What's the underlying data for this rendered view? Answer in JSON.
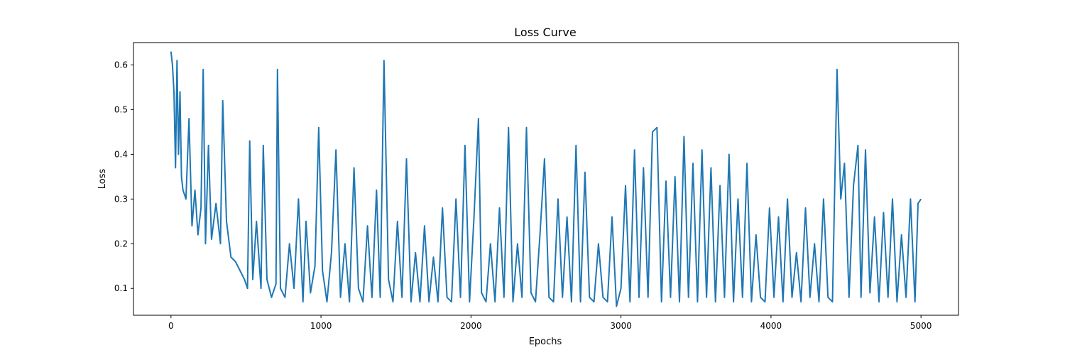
{
  "chart_data": {
    "type": "line",
    "title": "Loss Curve",
    "xlabel": "Epochs",
    "ylabel": "Loss",
    "xlim": [
      -250,
      5250
    ],
    "ylim": [
      0.04,
      0.65
    ],
    "xticks": [
      0,
      1000,
      2000,
      3000,
      4000,
      5000
    ],
    "xtick_labels": [
      "0",
      "1000",
      "2000",
      "3000",
      "4000",
      "5000"
    ],
    "yticks": [
      0.1,
      0.2,
      0.3,
      0.4,
      0.5,
      0.6
    ],
    "ytick_labels": [
      "0.1",
      "0.2",
      "0.3",
      "0.4",
      "0.5",
      "0.6"
    ],
    "grid": false,
    "series": [
      {
        "color": "#1f77b4",
        "x": [
          0,
          10,
          20,
          30,
          40,
          50,
          60,
          70,
          80,
          100,
          120,
          140,
          160,
          180,
          200,
          215,
          230,
          250,
          270,
          300,
          330,
          345,
          370,
          400,
          430,
          460,
          490,
          510,
          525,
          545,
          570,
          600,
          615,
          640,
          670,
          700,
          710,
          730,
          760,
          790,
          820,
          850,
          880,
          900,
          930,
          960,
          985,
          1010,
          1040,
          1070,
          1100,
          1130,
          1160,
          1190,
          1220,
          1250,
          1280,
          1310,
          1340,
          1370,
          1395,
          1420,
          1450,
          1480,
          1510,
          1540,
          1570,
          1600,
          1630,
          1660,
          1690,
          1720,
          1750,
          1780,
          1810,
          1840,
          1870,
          1900,
          1930,
          1960,
          1990,
          2020,
          2050,
          2070,
          2100,
          2130,
          2160,
          2190,
          2220,
          2250,
          2280,
          2310,
          2340,
          2370,
          2400,
          2430,
          2460,
          2490,
          2520,
          2550,
          2580,
          2610,
          2640,
          2670,
          2700,
          2730,
          2760,
          2790,
          2820,
          2850,
          2880,
          2910,
          2940,
          2970,
          3000,
          3030,
          3060,
          3090,
          3120,
          3150,
          3180,
          3210,
          3240,
          3270,
          3300,
          3330,
          3360,
          3390,
          3420,
          3450,
          3480,
          3510,
          3540,
          3570,
          3600,
          3630,
          3660,
          3690,
          3720,
          3750,
          3780,
          3810,
          3840,
          3870,
          3900,
          3930,
          3960,
          3990,
          4020,
          4050,
          4080,
          4110,
          4140,
          4170,
          4200,
          4230,
          4260,
          4290,
          4320,
          4350,
          4380,
          4410,
          4440,
          4465,
          4490,
          4520,
          4550,
          4580,
          4600,
          4630,
          4660,
          4690,
          4720,
          4750,
          4780,
          4810,
          4840,
          4870,
          4900,
          4930,
          4960,
          4980,
          5000
        ],
        "y": [
          0.63,
          0.6,
          0.54,
          0.37,
          0.61,
          0.4,
          0.54,
          0.35,
          0.32,
          0.3,
          0.48,
          0.24,
          0.32,
          0.22,
          0.28,
          0.59,
          0.2,
          0.42,
          0.21,
          0.29,
          0.2,
          0.52,
          0.25,
          0.17,
          0.16,
          0.14,
          0.12,
          0.1,
          0.43,
          0.12,
          0.25,
          0.1,
          0.42,
          0.12,
          0.08,
          0.11,
          0.59,
          0.1,
          0.08,
          0.2,
          0.1,
          0.3,
          0.07,
          0.25,
          0.09,
          0.15,
          0.46,
          0.14,
          0.07,
          0.18,
          0.41,
          0.08,
          0.2,
          0.07,
          0.37,
          0.1,
          0.07,
          0.24,
          0.08,
          0.32,
          0.08,
          0.61,
          0.12,
          0.07,
          0.25,
          0.08,
          0.39,
          0.07,
          0.18,
          0.07,
          0.24,
          0.07,
          0.17,
          0.07,
          0.28,
          0.08,
          0.07,
          0.3,
          0.08,
          0.42,
          0.07,
          0.26,
          0.48,
          0.09,
          0.07,
          0.2,
          0.07,
          0.28,
          0.08,
          0.46,
          0.07,
          0.2,
          0.08,
          0.46,
          0.09,
          0.07,
          0.22,
          0.39,
          0.08,
          0.07,
          0.3,
          0.08,
          0.26,
          0.07,
          0.42,
          0.07,
          0.36,
          0.08,
          0.07,
          0.2,
          0.08,
          0.07,
          0.26,
          0.06,
          0.1,
          0.33,
          0.07,
          0.41,
          0.08,
          0.37,
          0.08,
          0.45,
          0.46,
          0.07,
          0.34,
          0.08,
          0.35,
          0.07,
          0.44,
          0.08,
          0.38,
          0.07,
          0.41,
          0.08,
          0.37,
          0.07,
          0.33,
          0.08,
          0.4,
          0.07,
          0.3,
          0.08,
          0.38,
          0.07,
          0.22,
          0.08,
          0.07,
          0.28,
          0.08,
          0.26,
          0.07,
          0.3,
          0.08,
          0.18,
          0.07,
          0.28,
          0.08,
          0.2,
          0.07,
          0.3,
          0.08,
          0.07,
          0.59,
          0.3,
          0.38,
          0.08,
          0.33,
          0.42,
          0.08,
          0.41,
          0.09,
          0.26,
          0.07,
          0.27,
          0.08,
          0.3,
          0.07,
          0.22,
          0.08,
          0.3,
          0.07,
          0.29,
          0.3
        ]
      }
    ]
  }
}
